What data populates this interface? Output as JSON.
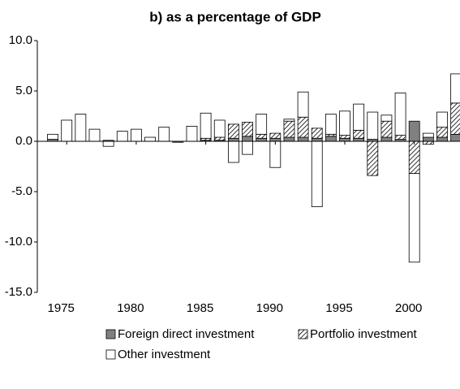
{
  "chart_data": {
    "type": "stacked-bar",
    "title": "b) as a percentage of GDP",
    "categories": [
      null,
      "1975",
      null,
      null,
      null,
      null,
      "1980",
      null,
      null,
      null,
      null,
      "1985",
      null,
      null,
      null,
      null,
      "1990",
      null,
      null,
      null,
      null,
      "1995",
      null,
      null,
      null,
      null,
      "2000",
      null,
      null,
      null
    ],
    "series": [
      {
        "name": "Foreign direct investment",
        "color": "#808080",
        "values": [
          0.2,
          0,
          0,
          0,
          0.1,
          0,
          0,
          0,
          0,
          -0.1,
          0,
          0.1,
          0.1,
          0.3,
          0.5,
          0.3,
          0.3,
          0.4,
          0.4,
          0.3,
          0.5,
          0.3,
          0.3,
          0.2,
          0.4,
          0.2,
          2.0,
          0.4,
          0.4,
          0.7
        ]
      },
      {
        "name": "Portfolio investment",
        "color": "#ffffff",
        "pattern": "diagonal-hatch",
        "values": [
          0,
          0,
          0,
          0,
          0,
          0,
          0,
          0,
          0,
          0,
          0,
          0.2,
          0.3,
          1.4,
          1.4,
          0.4,
          0.5,
          1.6,
          2.0,
          1.0,
          0.2,
          0.3,
          0.8,
          -3.4,
          1.6,
          0.4,
          -3.2,
          -0.3,
          1.0,
          3.1
        ]
      },
      {
        "name": "Other investment",
        "color": "#ffffff",
        "values": [
          0.5,
          2.1,
          2.7,
          1.2,
          -0.5,
          1.0,
          1.2,
          0.4,
          1.4,
          0,
          1.5,
          2.5,
          1.7,
          -2.1,
          -1.3,
          2.0,
          -2.6,
          0.2,
          2.5,
          -6.5,
          2.0,
          2.4,
          2.6,
          2.7,
          0.6,
          4.2,
          -8.8,
          0.4,
          1.5,
          2.9
        ]
      }
    ],
    "ylim": [
      -15,
      10
    ],
    "yticks": [
      {
        "value": -15,
        "label": "-15.0"
      },
      {
        "value": -10,
        "label": "-10.0"
      },
      {
        "value": -5,
        "label": "-5.0"
      },
      {
        "value": 0,
        "label": "0.0"
      },
      {
        "value": 5,
        "label": "5.0"
      },
      {
        "value": 10,
        "label": "10.0"
      }
    ],
    "legend": "bottom"
  }
}
